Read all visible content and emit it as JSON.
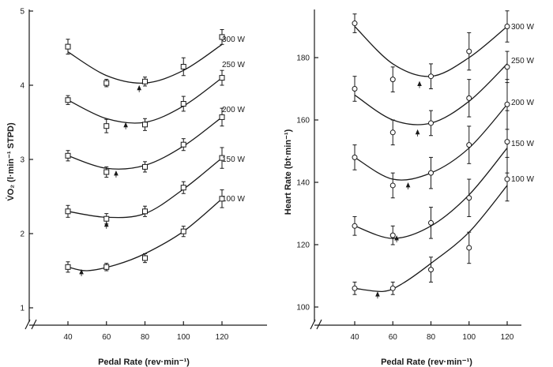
{
  "chart_data": [
    {
      "type": "line",
      "marker": "square",
      "xlabel": "Pedal Rate (rev·min⁻¹)",
      "ylabel": "V̇O₂ (l·min⁻¹ STPD)",
      "xlim": [
        33,
        125
      ],
      "ylim": [
        1,
        5
      ],
      "xticks": [
        "40",
        "60",
        "80",
        "100",
        "120"
      ],
      "yticks": [
        "1",
        "2",
        "3",
        "4",
        "5"
      ],
      "x": [
        40,
        60,
        80,
        100,
        120
      ],
      "series": [
        {
          "name": "100 W",
          "values": [
            1.55,
            1.55,
            1.67,
            2.03,
            2.47
          ],
          "err": [
            0.07,
            0.05,
            0.06,
            0.07,
            0.12
          ],
          "curve": [
            1.55,
            1.5,
            1.58,
            1.73,
            2.03,
            2.47
          ],
          "curve_x": [
            40,
            50,
            65,
            80,
            100,
            120
          ],
          "min_x": 47,
          "min_y": 1.5
        },
        {
          "name": "150 W",
          "values": [
            2.3,
            2.2,
            2.3,
            2.62,
            3.02
          ],
          "err": [
            0.08,
            0.07,
            0.07,
            0.08,
            0.14
          ],
          "curve": [
            2.3,
            2.22,
            2.27,
            2.6,
            3.02
          ],
          "curve_x": [
            40,
            60,
            80,
            100,
            120
          ],
          "min_x": 60,
          "min_y": 2.14
        },
        {
          "name": "200 W",
          "values": [
            3.05,
            2.83,
            2.9,
            3.2,
            3.57
          ],
          "err": [
            0.07,
            0.07,
            0.07,
            0.08,
            0.12
          ],
          "curve": [
            3.05,
            2.88,
            2.92,
            3.18,
            3.57
          ],
          "curve_x": [
            40,
            60,
            80,
            100,
            120
          ],
          "min_x": 65,
          "min_y": 2.83
        },
        {
          "name": "250 W",
          "values": [
            3.8,
            3.45,
            3.47,
            3.75,
            4.1
          ],
          "err": [
            0.06,
            0.09,
            0.08,
            0.1,
            0.1
          ],
          "curve": [
            3.8,
            3.55,
            3.5,
            3.72,
            4.1
          ],
          "curve_x": [
            40,
            60,
            80,
            100,
            120
          ],
          "min_x": 70,
          "min_y": 3.48
        },
        {
          "name": "300 W",
          "values": [
            4.52,
            4.03,
            4.05,
            4.25,
            4.65
          ],
          "err": [
            0.1,
            0.05,
            0.06,
            0.12,
            0.1
          ],
          "curve": [
            4.45,
            4.13,
            4.03,
            4.2,
            4.55
          ],
          "curve_x": [
            40,
            60,
            80,
            100,
            120
          ],
          "min_x": 77,
          "min_y": 3.98
        }
      ]
    },
    {
      "type": "line",
      "marker": "circle",
      "xlabel": "Pedal Rate (rev·min⁻¹)",
      "ylabel": "Heart Rate (bt·min⁻¹)",
      "xlim": [
        33,
        125
      ],
      "ylim": [
        100,
        195
      ],
      "xticks": [
        "40",
        "60",
        "80",
        "100",
        "120"
      ],
      "yticks": [
        "100",
        "120",
        "140",
        "160",
        "180"
      ],
      "x": [
        40,
        60,
        80,
        100,
        120
      ],
      "series": [
        {
          "name": "100 W",
          "values": [
            106,
            106,
            112,
            119,
            141
          ],
          "err": [
            2,
            2,
            4,
            5,
            7
          ],
          "curve": [
            106,
            105,
            107.5,
            114,
            124,
            139
          ],
          "curve_x": [
            40,
            55,
            65,
            80,
            100,
            120
          ],
          "min_x": 52,
          "min_y": 104.5
        },
        {
          "name": "150 W",
          "values": [
            126,
            123,
            127,
            135,
            153
          ],
          "err": [
            3,
            3,
            5,
            6,
            10
          ],
          "curve": [
            126,
            122,
            126,
            136,
            151
          ],
          "curve_x": [
            40,
            60,
            80,
            100,
            120
          ],
          "min_x": 62,
          "min_y": 122.5
        },
        {
          "name": "200 W",
          "values": [
            148,
            139,
            143,
            152,
            165
          ],
          "err": [
            4,
            4,
            5,
            6,
            8
          ],
          "curve": [
            148,
            141,
            143,
            151,
            165
          ],
          "curve_x": [
            40,
            60,
            80,
            100,
            120
          ],
          "min_x": 68,
          "min_y": 139.5
        },
        {
          "name": "250 W",
          "values": [
            170,
            156,
            159,
            167,
            177
          ],
          "err": [
            4,
            4,
            4,
            6,
            5
          ],
          "curve": [
            168,
            160,
            159,
            166,
            178
          ],
          "curve_x": [
            40,
            60,
            80,
            100,
            120
          ],
          "min_x": 73,
          "min_y": 156.5
        },
        {
          "name": "300 W",
          "values": [
            191,
            173,
            174,
            182,
            190
          ],
          "err": [
            3,
            4,
            4,
            6,
            5
          ],
          "curve": [
            190,
            178,
            174,
            180,
            190
          ],
          "curve_x": [
            40,
            60,
            80,
            100,
            120
          ],
          "min_x": 74,
          "min_y": 172
        }
      ]
    }
  ]
}
